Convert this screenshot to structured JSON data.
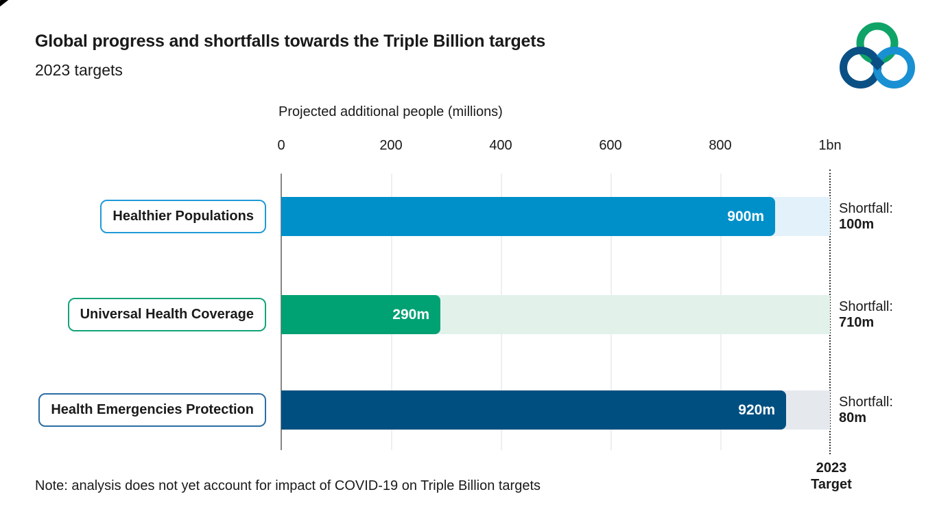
{
  "page": {
    "title": "Global progress and shortfalls towards the Triple Billion targets",
    "subtitle": "2023 targets",
    "note": "Note: analysis does not yet account for impact of COVID-19 on Triple Billion targets"
  },
  "logo": {
    "name": "triple-billion-logo",
    "green": "#0FA368",
    "dark_blue": "#0A5084",
    "light_blue": "#1990D2"
  },
  "chart_data": {
    "type": "bar",
    "orientation": "horizontal",
    "axis_title": "Projected additional people (millions)",
    "xlim": [
      0,
      1000
    ],
    "tick_labels": [
      "0",
      "200",
      "400",
      "600",
      "800",
      "1bn"
    ],
    "grid": true,
    "target_line": {
      "position": 1000,
      "label_line1": "2023",
      "label_line2": "Target"
    },
    "rows": [
      {
        "label": "Healthier Populations",
        "value": 900,
        "value_label": "900m",
        "shortfall_prefix": "Shortfall:",
        "shortfall_value": "100m",
        "bar_color": "#0090C9",
        "track_color": "#E3F1FA",
        "border_color": "#1E9AD6"
      },
      {
        "label": "Universal Health Coverage",
        "value": 290,
        "value_label": "290m",
        "shortfall_prefix": "Shortfall:",
        "shortfall_value": "710m",
        "bar_color": "#00A173",
        "track_color": "#E2F2EB",
        "border_color": "#12A377"
      },
      {
        "label": "Health Emergencies Protection",
        "value": 920,
        "value_label": "920m",
        "shortfall_prefix": "Shortfall:",
        "shortfall_value": "80m",
        "bar_color": "#004F81",
        "track_color": "#E5E9EE",
        "border_color": "#2B6CA3"
      }
    ]
  }
}
